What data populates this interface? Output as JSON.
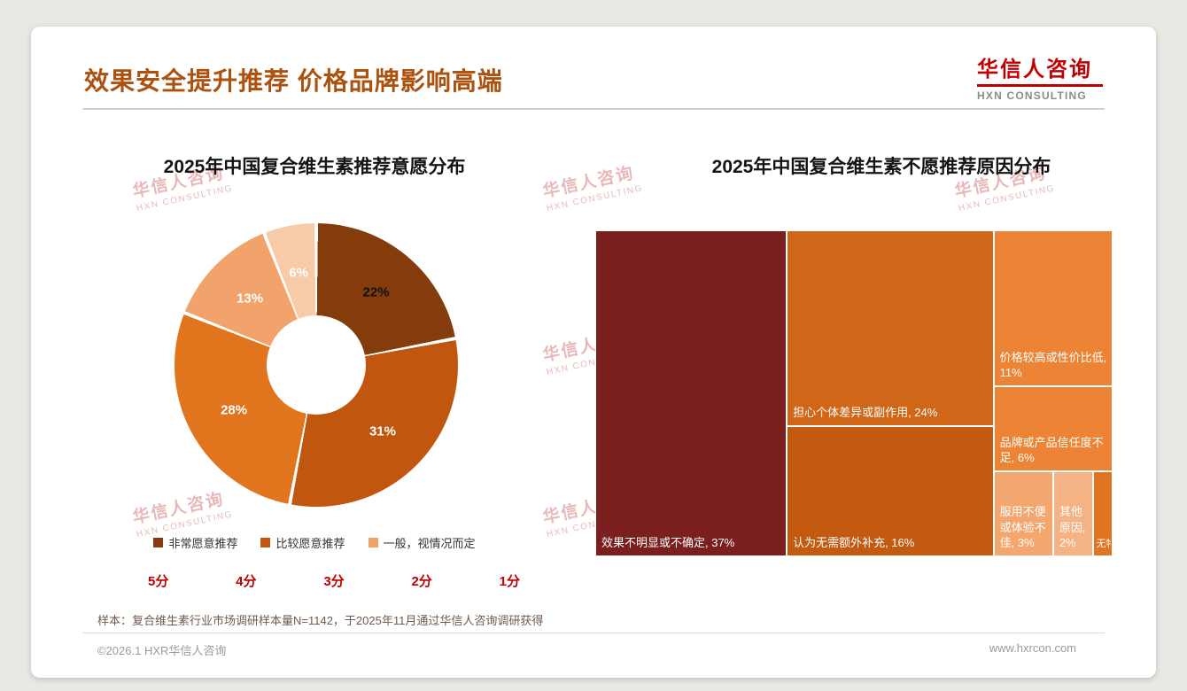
{
  "page": {
    "title": "效果安全提升推荐 价格品牌影响高端",
    "logo": {
      "name": "华信人咨询",
      "tagline": "HXN CONSULTING"
    },
    "watermark": {
      "line1": "华信人咨询",
      "line2": "HXN CONSULTING"
    },
    "note": "样本：复合维生素行业市场调研样本量N=1142，于2025年11月通过华信人咨询调研获得",
    "footer": {
      "copyright": "©2026.1 HXR华信人咨询",
      "website": "www.hxrcon.com"
    },
    "colors": {
      "accent": "#AC520E",
      "logo_red": "#C00000",
      "score_red": "#C00000"
    }
  },
  "chart_data": [
    {
      "type": "pie",
      "subtype": "donut",
      "title": "2025年中国复合维生素推荐意愿分布",
      "slices": [
        {
          "value": 22,
          "color": "#843C0C",
          "label_color": "#111111"
        },
        {
          "value": 31,
          "color": "#C1570F",
          "label_color": "#ffffff"
        },
        {
          "value": 28,
          "color": "#E0751E",
          "label_color": "#ffffff"
        },
        {
          "value": 13,
          "color": "#F2A36B",
          "label_color": "#ffffff"
        },
        {
          "value": 6,
          "color": "#F7CBA8",
          "label_color": "#ffffff"
        }
      ],
      "legend": [
        {
          "label": "非常愿意推荐",
          "color": "#843C0C"
        },
        {
          "label": "比较愿意推荐",
          "color": "#C1570F"
        },
        {
          "label": "一般，视情况而定",
          "color": "#F0A266"
        }
      ],
      "score_labels": [
        "5分",
        "4分",
        "3分",
        "2分",
        "1分"
      ],
      "legend_position": "bottom"
    },
    {
      "type": "treemap",
      "title": "2025年中国复合维生素不愿推荐原因分布",
      "items": [
        {
          "label": "效果不明显或不确定, 37%",
          "value": 37,
          "color": "#7B1E1E"
        },
        {
          "label": "担心个体差异或副作用, 24%",
          "value": 24,
          "color": "#D06618"
        },
        {
          "label": "认为无需额外补充, 16%",
          "value": 16,
          "color": "#C45A10"
        },
        {
          "label": "价格较高或性价比低, 11%",
          "value": 11,
          "color": "#ED8435"
        },
        {
          "label": "品牌或产品信任度不足, 6%",
          "value": 6,
          "color": "#ED8435"
        },
        {
          "label": "服用不便或体验不佳, 3%",
          "value": 3,
          "color": "#F3A76F"
        },
        {
          "label": "其他原因, 2%",
          "value": 2,
          "color": "#F5B285"
        },
        {
          "label": "无特...",
          "value": 1,
          "color": "#E07420"
        }
      ],
      "layout": {
        "columns": [
          [
            0
          ],
          [
            1,
            2
          ],
          [
            3,
            4,
            [
              5,
              6,
              7
            ]
          ]
        ]
      }
    }
  ]
}
